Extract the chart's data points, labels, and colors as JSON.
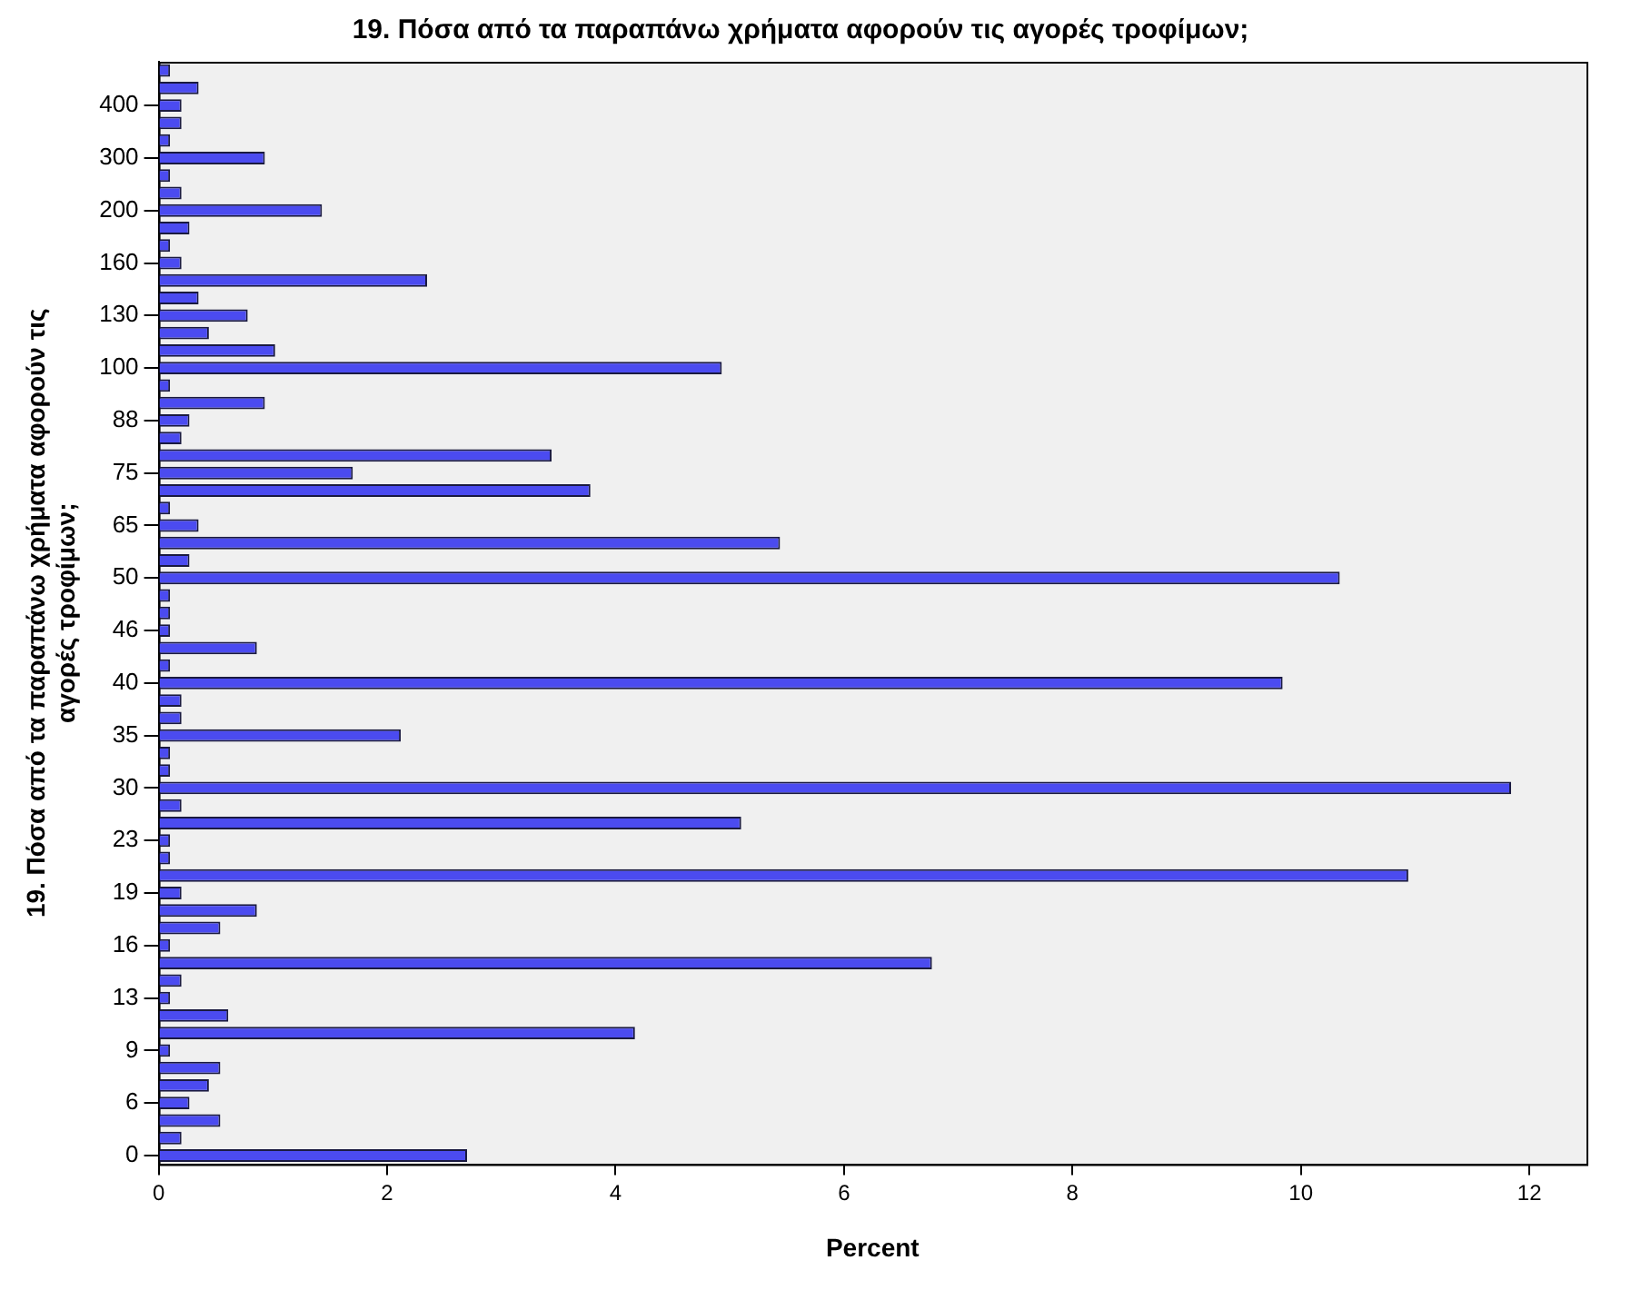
{
  "chart_data": {
    "type": "bar",
    "orientation": "horizontal",
    "title": "19. Πόσα από τα παραπάνω χρήματα αφορούν τις αγορές τροφίμων;",
    "xlabel": "Percent",
    "ylabel": "19. Πόσα από τα παραπάνω χρήματα αφορούν τις αγορές τροφίμων;",
    "categories": [
      null,
      null,
      "400",
      null,
      null,
      "300",
      null,
      null,
      "200",
      null,
      null,
      "160",
      null,
      null,
      "130",
      null,
      null,
      "100",
      null,
      null,
      "88",
      null,
      null,
      "75",
      null,
      null,
      "65",
      null,
      null,
      "50",
      null,
      null,
      "46",
      null,
      null,
      "40",
      null,
      null,
      "35",
      null,
      null,
      "30",
      null,
      null,
      "23",
      null,
      null,
      "19",
      null,
      null,
      "16",
      null,
      null,
      "13",
      null,
      null,
      "9",
      null,
      null,
      "6",
      null,
      null,
      "0"
    ],
    "values": [
      0.1,
      0.35,
      0.2,
      0.2,
      0.1,
      0.93,
      0.1,
      0.2,
      1.43,
      0.27,
      0.1,
      0.2,
      2.35,
      0.35,
      0.78,
      0.44,
      1.02,
      4.93,
      0.1,
      0.93,
      0.27,
      0.2,
      3.44,
      1.7,
      3.78,
      0.1,
      0.35,
      5.44,
      0.27,
      10.34,
      0.1,
      0.1,
      0.1,
      0.86,
      0.1,
      9.84,
      0.2,
      0.2,
      2.12,
      0.1,
      0.1,
      11.84,
      0.2,
      5.1,
      0.1,
      0.1,
      10.94,
      0.2,
      0.86,
      0.54,
      0.1,
      6.77,
      0.2,
      0.1,
      0.61,
      4.17,
      0.1,
      0.54,
      0.44,
      0.27,
      0.54,
      0.2,
      2.7
    ],
    "color": "#4b4bf0",
    "xlim": [
      0,
      12.5
    ],
    "xticks": [
      0,
      2,
      4,
      6,
      8,
      10,
      12
    ],
    "grid": false,
    "legend": false
  }
}
